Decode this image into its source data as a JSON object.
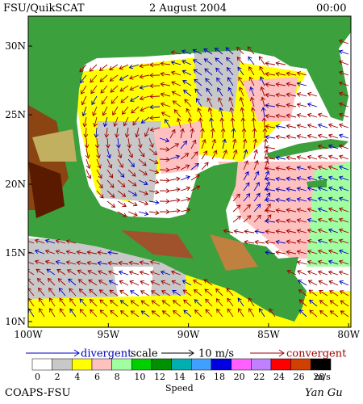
{
  "header": {
    "title": "FSU/QuikSCAT",
    "date": "2 August 2004",
    "time": "00:00"
  },
  "map": {
    "lat_labels": [
      "30N",
      "25N",
      "20N",
      "15N",
      "10N"
    ],
    "lon_labels": [
      "100W",
      "95W",
      "90W",
      "85W",
      "80W"
    ]
  },
  "legend": {
    "divergent": "divergent",
    "scale": "scale",
    "scale_value": "10 m/s",
    "convergent": "convergent"
  },
  "colorbar": {
    "labels": [
      0,
      2,
      4,
      6,
      8,
      10,
      12,
      14,
      16,
      18,
      20,
      22,
      24,
      26,
      28
    ],
    "unit": "m/s",
    "title": "Speed",
    "colors": [
      "#ffffff",
      "#c8c8c8",
      "#ffff00",
      "#ffc0c0",
      "#a0ffa0",
      "#00d000",
      "#009000",
      "#00b0b0",
      "#40a0ff",
      "#0000e0",
      "#ff60ff",
      "#c080ff",
      "#ff0000",
      "#d04000",
      "#000000"
    ]
  },
  "footer": {
    "credit": "COAPS-FSU",
    "author": "Yan Gu"
  }
}
